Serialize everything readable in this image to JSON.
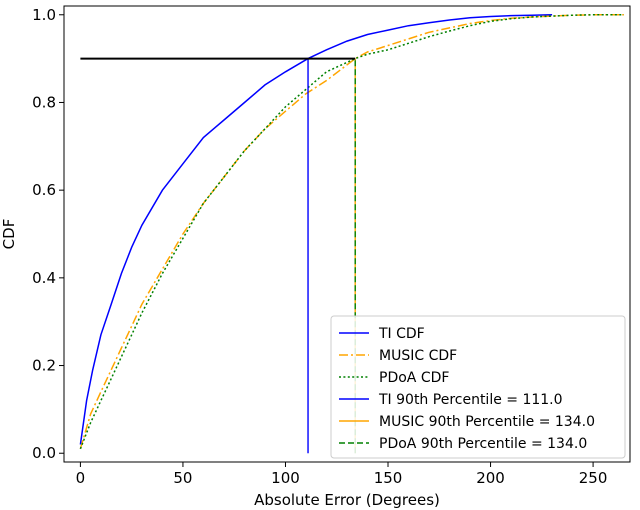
{
  "chart_data": {
    "type": "line",
    "title": "",
    "xlabel": "Absolute Error (Degrees)",
    "ylabel": "CDF",
    "xlim": [
      -8,
      268
    ],
    "ylim": [
      -0.02,
      1.02
    ],
    "xticks": [
      0,
      50,
      100,
      150,
      200,
      250
    ],
    "yticks": [
      0.0,
      0.2,
      0.4,
      0.6,
      0.8,
      1.0
    ],
    "xtick_labels": [
      "0",
      "50",
      "100",
      "150",
      "200",
      "250"
    ],
    "ytick_labels": [
      "0.0",
      "0.2",
      "0.4",
      "0.6",
      "0.8",
      "1.0"
    ],
    "grid": false,
    "legend_position": "bottom-right",
    "series": [
      {
        "name": "TI CDF",
        "color": "#0000ff",
        "style": "solid",
        "x": [
          0,
          3,
          6,
          10,
          15,
          20,
          25,
          30,
          40,
          50,
          60,
          70,
          80,
          90,
          100,
          111,
          120,
          130,
          140,
          150,
          160,
          170,
          180,
          190,
          200,
          210,
          220,
          230
        ],
        "y": [
          0.02,
          0.12,
          0.19,
          0.27,
          0.34,
          0.41,
          0.47,
          0.52,
          0.6,
          0.66,
          0.72,
          0.76,
          0.8,
          0.84,
          0.87,
          0.9,
          0.92,
          0.94,
          0.955,
          0.965,
          0.975,
          0.982,
          0.988,
          0.993,
          0.996,
          0.998,
          0.999,
          1.0
        ]
      },
      {
        "name": "MUSIC CDF",
        "color": "#ffa500",
        "style": "dashdot",
        "x": [
          0,
          5,
          10,
          15,
          20,
          25,
          30,
          40,
          50,
          60,
          70,
          80,
          90,
          100,
          110,
          120,
          134,
          140,
          150,
          160,
          170,
          180,
          190,
          200,
          210,
          220,
          230,
          240,
          250,
          265
        ],
        "y": [
          0.01,
          0.09,
          0.14,
          0.19,
          0.24,
          0.29,
          0.34,
          0.42,
          0.5,
          0.57,
          0.63,
          0.69,
          0.74,
          0.78,
          0.82,
          0.85,
          0.9,
          0.915,
          0.93,
          0.945,
          0.96,
          0.97,
          0.98,
          0.987,
          0.992,
          0.995,
          0.997,
          0.999,
          1.0,
          1.0
        ]
      },
      {
        "name": "PDoA CDF",
        "color": "#008000",
        "style": "dotted",
        "x": [
          0,
          5,
          10,
          15,
          20,
          25,
          30,
          40,
          50,
          60,
          70,
          80,
          90,
          100,
          110,
          120,
          134,
          140,
          150,
          160,
          170,
          180,
          190,
          200,
          210,
          220,
          230,
          240,
          250,
          265
        ],
        "y": [
          0.01,
          0.07,
          0.12,
          0.17,
          0.22,
          0.27,
          0.32,
          0.41,
          0.49,
          0.57,
          0.63,
          0.69,
          0.74,
          0.79,
          0.83,
          0.87,
          0.9,
          0.91,
          0.92,
          0.935,
          0.95,
          0.963,
          0.975,
          0.985,
          0.991,
          0.995,
          0.997,
          0.999,
          1.0,
          1.0
        ]
      },
      {
        "name": "TI 90th Percentile = 111.0",
        "color": "#0000ff",
        "style": "solid",
        "type": "vline",
        "x": 111.0,
        "y_range": [
          0,
          0.9
        ]
      },
      {
        "name": "MUSIC 90th Percentile = 134.0",
        "color": "#ffa500",
        "style": "solid",
        "type": "vline",
        "x": 134.0,
        "y_range": [
          0,
          0.9
        ]
      },
      {
        "name": "PDoA 90th Percentile = 134.0",
        "color": "#008000",
        "style": "dashed",
        "type": "vline",
        "x": 134.0,
        "y_range": [
          0,
          0.9
        ]
      }
    ],
    "reference_line": {
      "color": "#000000",
      "style": "solid",
      "y": 0.9,
      "x_range": [
        0,
        134
      ]
    }
  }
}
